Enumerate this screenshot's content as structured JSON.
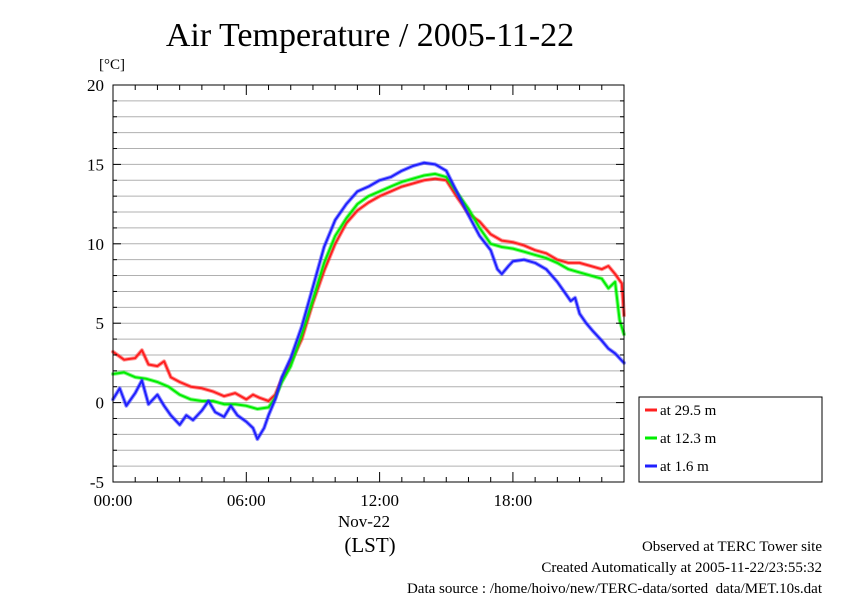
{
  "chart_data": {
    "type": "line",
    "title": "Air Temperature / 2005-11-22",
    "ylabel": "[°C]",
    "xlabel": "(LST)",
    "date_label": "Nov-22",
    "ylim": [
      -5,
      20
    ],
    "y_ticks": [
      -5,
      0,
      5,
      10,
      15,
      20
    ],
    "xlim_hours": [
      0,
      23
    ],
    "x_ticks": [
      {
        "hour": 0,
        "label": "00:00"
      },
      {
        "hour": 6,
        "label": "06:00"
      },
      {
        "hour": 12,
        "label": "12:00"
      },
      {
        "hour": 18,
        "label": "18:00"
      }
    ],
    "grid": true,
    "legend_position": "bottom-right, outside plot",
    "series": [
      {
        "name": "at 29.5 m",
        "color": "#ff2020",
        "points": [
          [
            0,
            3.2
          ],
          [
            0.5,
            2.7
          ],
          [
            1,
            2.8
          ],
          [
            1.3,
            3.3
          ],
          [
            1.6,
            2.4
          ],
          [
            2,
            2.3
          ],
          [
            2.3,
            2.6
          ],
          [
            2.6,
            1.6
          ],
          [
            3,
            1.3
          ],
          [
            3.5,
            1.0
          ],
          [
            4,
            0.9
          ],
          [
            4.5,
            0.7
          ],
          [
            5,
            0.4
          ],
          [
            5.5,
            0.6
          ],
          [
            6,
            0.2
          ],
          [
            6.3,
            0.5
          ],
          [
            6.6,
            0.3
          ],
          [
            7,
            0.1
          ],
          [
            7.3,
            0.5
          ],
          [
            7.6,
            1.5
          ],
          [
            8,
            2.5
          ],
          [
            8.5,
            4.0
          ],
          [
            9,
            6.3
          ],
          [
            9.5,
            8.3
          ],
          [
            10,
            10.0
          ],
          [
            10.5,
            11.3
          ],
          [
            11,
            12.1
          ],
          [
            11.5,
            12.6
          ],
          [
            12,
            13.0
          ],
          [
            12.5,
            13.3
          ],
          [
            13,
            13.6
          ],
          [
            13.5,
            13.8
          ],
          [
            14,
            14.0
          ],
          [
            14.5,
            14.1
          ],
          [
            15,
            14.0
          ],
          [
            15.5,
            12.9
          ],
          [
            16,
            11.9
          ],
          [
            16.5,
            11.4
          ],
          [
            17,
            10.6
          ],
          [
            17.5,
            10.2
          ],
          [
            18,
            10.1
          ],
          [
            18.5,
            9.9
          ],
          [
            19,
            9.6
          ],
          [
            19.5,
            9.4
          ],
          [
            20,
            9.0
          ],
          [
            20.5,
            8.8
          ],
          [
            21,
            8.8
          ],
          [
            21.5,
            8.6
          ],
          [
            22,
            8.4
          ],
          [
            22.3,
            8.6
          ],
          [
            22.6,
            8.1
          ],
          [
            22.9,
            7.5
          ],
          [
            23,
            5.5
          ]
        ]
      },
      {
        "name": "at 12.3 m",
        "color": "#00ee00",
        "points": [
          [
            0,
            1.8
          ],
          [
            0.5,
            1.9
          ],
          [
            1,
            1.6
          ],
          [
            1.5,
            1.5
          ],
          [
            2,
            1.3
          ],
          [
            2.5,
            1.0
          ],
          [
            3,
            0.5
          ],
          [
            3.5,
            0.2
          ],
          [
            4,
            0.1
          ],
          [
            4.5,
            0.1
          ],
          [
            5,
            -0.1
          ],
          [
            5.5,
            -0.1
          ],
          [
            6,
            -0.2
          ],
          [
            6.5,
            -0.4
          ],
          [
            7,
            -0.3
          ],
          [
            7.3,
            0.3
          ],
          [
            7.6,
            1.3
          ],
          [
            8,
            2.3
          ],
          [
            8.5,
            4.3
          ],
          [
            9,
            6.5
          ],
          [
            9.5,
            8.8
          ],
          [
            10,
            10.5
          ],
          [
            10.5,
            11.6
          ],
          [
            11,
            12.5
          ],
          [
            11.5,
            13.0
          ],
          [
            12,
            13.3
          ],
          [
            12.5,
            13.6
          ],
          [
            13,
            13.9
          ],
          [
            13.5,
            14.1
          ],
          [
            14,
            14.3
          ],
          [
            14.5,
            14.4
          ],
          [
            15,
            14.2
          ],
          [
            15.5,
            13.2
          ],
          [
            16,
            12.2
          ],
          [
            16.5,
            11.0
          ],
          [
            17,
            10.0
          ],
          [
            17.5,
            9.8
          ],
          [
            18,
            9.7
          ],
          [
            18.5,
            9.5
          ],
          [
            19,
            9.3
          ],
          [
            19.5,
            9.1
          ],
          [
            20,
            8.8
          ],
          [
            20.5,
            8.4
          ],
          [
            21,
            8.2
          ],
          [
            21.5,
            8.0
          ],
          [
            22,
            7.8
          ],
          [
            22.3,
            7.2
          ],
          [
            22.6,
            7.6
          ],
          [
            22.8,
            5.2
          ],
          [
            23,
            4.3
          ]
        ]
      },
      {
        "name": "at 1.6 m",
        "color": "#2020ff",
        "points": [
          [
            0,
            0.2
          ],
          [
            0.3,
            0.9
          ],
          [
            0.6,
            -0.2
          ],
          [
            1,
            0.6
          ],
          [
            1.3,
            1.4
          ],
          [
            1.6,
            -0.1
          ],
          [
            2,
            0.5
          ],
          [
            2.3,
            -0.2
          ],
          [
            2.6,
            -0.8
          ],
          [
            3,
            -1.4
          ],
          [
            3.3,
            -0.8
          ],
          [
            3.6,
            -1.1
          ],
          [
            4,
            -0.5
          ],
          [
            4.3,
            0.1
          ],
          [
            4.6,
            -0.6
          ],
          [
            5,
            -0.9
          ],
          [
            5.3,
            -0.2
          ],
          [
            5.6,
            -0.8
          ],
          [
            6,
            -1.2
          ],
          [
            6.3,
            -1.6
          ],
          [
            6.5,
            -2.3
          ],
          [
            6.8,
            -1.6
          ],
          [
            7,
            -0.8
          ],
          [
            7.3,
            0.2
          ],
          [
            7.6,
            1.6
          ],
          [
            8,
            2.8
          ],
          [
            8.5,
            4.8
          ],
          [
            9,
            7.3
          ],
          [
            9.5,
            9.8
          ],
          [
            10,
            11.5
          ],
          [
            10.5,
            12.5
          ],
          [
            11,
            13.3
          ],
          [
            11.5,
            13.6
          ],
          [
            12,
            14.0
          ],
          [
            12.5,
            14.2
          ],
          [
            13,
            14.6
          ],
          [
            13.5,
            14.9
          ],
          [
            14,
            15.1
          ],
          [
            14.5,
            15.0
          ],
          [
            15,
            14.6
          ],
          [
            15.5,
            13.2
          ],
          [
            16,
            11.8
          ],
          [
            16.5,
            10.5
          ],
          [
            17,
            9.6
          ],
          [
            17.3,
            8.4
          ],
          [
            17.5,
            8.1
          ],
          [
            17.8,
            8.6
          ],
          [
            18,
            8.9
          ],
          [
            18.5,
            9.0
          ],
          [
            19,
            8.8
          ],
          [
            19.5,
            8.4
          ],
          [
            20,
            7.6
          ],
          [
            20.3,
            7.0
          ],
          [
            20.6,
            6.4
          ],
          [
            20.8,
            6.6
          ],
          [
            21,
            5.6
          ],
          [
            21.3,
            5.0
          ],
          [
            21.6,
            4.5
          ],
          [
            22,
            3.9
          ],
          [
            22.3,
            3.4
          ],
          [
            22.6,
            3.1
          ],
          [
            23,
            2.5
          ]
        ]
      }
    ]
  },
  "footer": {
    "line1": "Observed at TERC Tower site",
    "line2": "Created Automatically at 2005-11-22/23:55:32",
    "line3": "Data source : /home/hoivo/new/TERC-data/sorted  data/MET.10s.dat"
  }
}
